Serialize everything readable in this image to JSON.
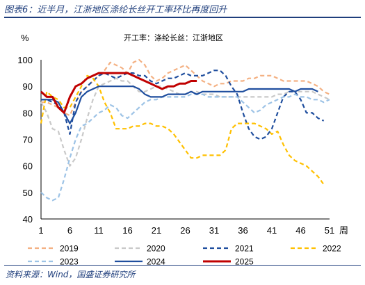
{
  "header": {
    "title": "图表6：近半月，江浙地区涤纶长丝开工率环比再度回升"
  },
  "footer": {
    "source": "资料来源：Wind，国盛证券研究所"
  },
  "chart_data": {
    "type": "line",
    "subtitle": "开工率：涤纶长丝：江浙地区",
    "ylabel": "%",
    "xlabel": "周",
    "ylim": [
      40,
      100
    ],
    "yticks": [
      40,
      50,
      60,
      70,
      80,
      90,
      100
    ],
    "xlim": [
      1,
      51
    ],
    "xticks": [
      1,
      6,
      11,
      16,
      21,
      26,
      31,
      36,
      41,
      46,
      51
    ],
    "grid": false,
    "legend_position": "bottom",
    "series": [
      {
        "name": "2019",
        "color": "#f4b183",
        "dash": "6,4",
        "width": 2.2,
        "x": [
          1,
          2,
          3,
          4,
          5,
          6,
          7,
          8,
          9,
          10,
          11,
          12,
          13,
          14,
          15,
          16,
          17,
          18,
          19,
          20,
          21,
          22,
          23,
          24,
          25,
          26,
          27,
          28,
          29,
          30,
          31,
          32,
          33,
          34,
          35,
          36,
          37,
          38,
          39,
          40,
          41,
          42,
          43,
          44,
          45,
          46,
          47,
          48,
          49,
          50,
          51
        ],
        "y": [
          84,
          84,
          83,
          82,
          80,
          79,
          84,
          88,
          90,
          92,
          94,
          96,
          99,
          98,
          97,
          95,
          99,
          100,
          98,
          94,
          92,
          93,
          95,
          96,
          97,
          98,
          96,
          94,
          92,
          91,
          90,
          91,
          91,
          92,
          92,
          92,
          93,
          93,
          94,
          94,
          94,
          93,
          92,
          92,
          92,
          92,
          92,
          91,
          90,
          88,
          87
        ]
      },
      {
        "name": "2020",
        "color": "#c9c9c9",
        "dash": "6,4",
        "width": 2.2,
        "x": [
          1,
          2,
          3,
          4,
          5,
          6,
          7,
          8,
          9,
          10,
          11,
          12,
          13,
          14,
          15,
          16,
          17,
          18,
          19,
          20,
          21,
          22,
          23,
          24,
          25,
          26,
          27,
          28,
          29,
          30,
          31,
          32,
          33,
          34,
          35,
          36,
          37,
          38,
          39,
          40,
          41,
          42,
          43,
          44,
          45,
          46,
          47,
          48,
          49,
          50,
          51
        ],
        "y": [
          84,
          80,
          74,
          73,
          66,
          60,
          63,
          70,
          78,
          85,
          90,
          91,
          92,
          93,
          92,
          92,
          90,
          88,
          88,
          89,
          90,
          90,
          89,
          88,
          87,
          87,
          88,
          88,
          87,
          87,
          87,
          86,
          86,
          86,
          86,
          86,
          86,
          86,
          86,
          86,
          86,
          87,
          87,
          88,
          88,
          88,
          88,
          88,
          87,
          86,
          85
        ]
      },
      {
        "name": "2021",
        "color": "#1f4e9e",
        "dash": "6,4",
        "width": 2.2,
        "x": [
          1,
          2,
          3,
          4,
          5,
          6,
          7,
          8,
          9,
          10,
          11,
          12,
          13,
          14,
          15,
          16,
          17,
          18,
          19,
          20,
          21,
          22,
          23,
          24,
          25,
          26,
          27,
          28,
          29,
          30,
          31,
          32,
          33,
          34,
          35,
          36,
          37,
          38,
          39,
          40,
          41,
          42,
          43,
          44,
          45,
          46,
          47,
          48,
          49,
          50
        ],
        "y": [
          85,
          85,
          84,
          83,
          80,
          72,
          84,
          88,
          90,
          92,
          94,
          95,
          94,
          93,
          94,
          95,
          95,
          94,
          94,
          92,
          91,
          92,
          93,
          93,
          94,
          95,
          94,
          94,
          94,
          95,
          96,
          96,
          94,
          90,
          87,
          80,
          74,
          71,
          70,
          71,
          74,
          80,
          86,
          88,
          88,
          85,
          80,
          80,
          78,
          77
        ]
      },
      {
        "name": "2022",
        "color": "#ffc000",
        "dash": "6,4",
        "width": 2.2,
        "x": [
          1,
          2,
          3,
          4,
          5,
          6,
          7,
          8,
          9,
          10,
          11,
          12,
          13,
          14,
          15,
          16,
          17,
          18,
          19,
          20,
          21,
          22,
          23,
          24,
          25,
          26,
          27,
          28,
          29,
          30,
          31,
          32,
          33,
          34,
          35,
          36,
          37,
          38,
          39,
          40,
          41,
          42,
          43,
          44,
          45,
          46,
          47,
          48,
          49,
          50
        ],
        "y": [
          76,
          88,
          86,
          85,
          82,
          82,
          86,
          90,
          94,
          93,
          90,
          84,
          80,
          74,
          74,
          74,
          75,
          75,
          76,
          76,
          75,
          75,
          74,
          72,
          69,
          66,
          63,
          63,
          64,
          64,
          64,
          64,
          66,
          74,
          76,
          76,
          76,
          76,
          75,
          74,
          72,
          73,
          68,
          64,
          62,
          61,
          60,
          58,
          56,
          53
        ]
      },
      {
        "name": "2023",
        "color": "#9dc3e6",
        "dash": "6,4",
        "width": 2.2,
        "x": [
          1,
          2,
          3,
          4,
          5,
          6,
          7,
          8,
          9,
          10,
          11,
          12,
          13,
          14,
          15,
          16,
          17,
          18,
          19,
          20,
          21,
          22,
          23,
          24,
          25,
          26,
          27,
          28,
          29,
          30,
          31,
          32,
          33,
          34,
          35,
          36,
          37,
          38,
          39,
          40,
          41,
          42,
          43,
          44,
          45,
          46,
          47,
          48,
          49,
          50,
          51
        ],
        "y": [
          50,
          48,
          47,
          48,
          55,
          63,
          70,
          75,
          76,
          78,
          80,
          81,
          83,
          82,
          79,
          78,
          80,
          82,
          84,
          85,
          85,
          86,
          86,
          86,
          86,
          86,
          87,
          87,
          87,
          86,
          86,
          86,
          86,
          86,
          86,
          84,
          82,
          80,
          81,
          83,
          84,
          85,
          86,
          86,
          87,
          86,
          86,
          85,
          85,
          84,
          85
        ]
      },
      {
        "name": "2024",
        "color": "#1f4e9e",
        "dash": "",
        "width": 2.2,
        "x": [
          1,
          2,
          3,
          4,
          5,
          6,
          7,
          8,
          9,
          10,
          11,
          12,
          13,
          14,
          15,
          16,
          17,
          18,
          19,
          20,
          21,
          22,
          23,
          24,
          25,
          26,
          27,
          28,
          29,
          30,
          31,
          32,
          33,
          34,
          35,
          36,
          37,
          38,
          39,
          40,
          41,
          42,
          43,
          44,
          45,
          46,
          47,
          48,
          49
        ],
        "y": [
          85,
          85,
          85,
          84,
          80,
          76,
          80,
          86,
          88,
          89,
          90,
          90,
          90,
          90,
          90,
          90,
          90,
          89,
          87,
          86,
          86,
          86,
          87,
          87,
          87,
          87,
          88,
          87,
          88,
          88,
          88,
          88,
          88,
          88,
          88,
          88,
          89,
          89,
          89,
          89,
          89,
          89,
          89,
          89,
          88,
          89,
          89,
          89,
          88
        ]
      },
      {
        "name": "2025",
        "color": "#c00000",
        "dash": "",
        "width": 3,
        "x": [
          1,
          2,
          3,
          4,
          5,
          6,
          7,
          8,
          9,
          10,
          11,
          12,
          13,
          14,
          15,
          16,
          17,
          18,
          19,
          20,
          21,
          22,
          23,
          24,
          25,
          26,
          27,
          28
        ],
        "y": [
          88,
          86,
          86,
          82,
          80,
          86,
          90,
          91,
          93,
          94,
          95,
          95,
          95,
          95,
          95,
          95,
          94,
          93,
          92,
          91,
          90,
          89,
          90,
          90,
          91,
          91,
          92,
          92
        ]
      }
    ]
  }
}
